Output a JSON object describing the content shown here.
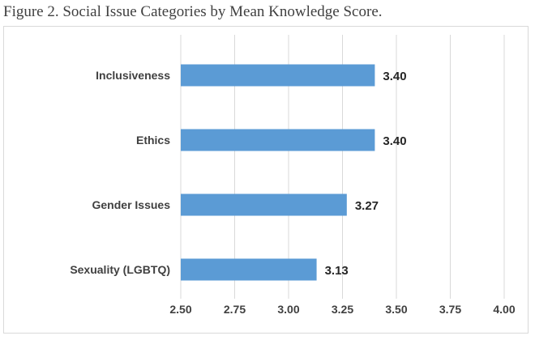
{
  "caption": "Figure 2. Social Issue Categories by Mean Knowledge Score.",
  "chart_data": {
    "type": "bar",
    "orientation": "horizontal",
    "title": "",
    "xlabel": "",
    "ylabel": "",
    "categories": [
      "Inclusiveness",
      "Ethics",
      "Gender Issues",
      "Sexuality (LGBTQ)"
    ],
    "values": [
      3.4,
      3.4,
      3.27,
      3.13
    ],
    "data_labels": [
      "3.40",
      "3.40",
      "3.27",
      "3.13"
    ],
    "xlim": [
      2.5,
      4.0
    ],
    "x_ticks": [
      2.5,
      2.75,
      3.0,
      3.25,
      3.5,
      3.75,
      4.0
    ],
    "x_tick_labels": [
      "2.50",
      "2.75",
      "3.00",
      "3.25",
      "3.50",
      "3.75",
      "4.00"
    ],
    "grid": "vertical",
    "bar_color": "#5b9bd5",
    "legend": "none"
  }
}
